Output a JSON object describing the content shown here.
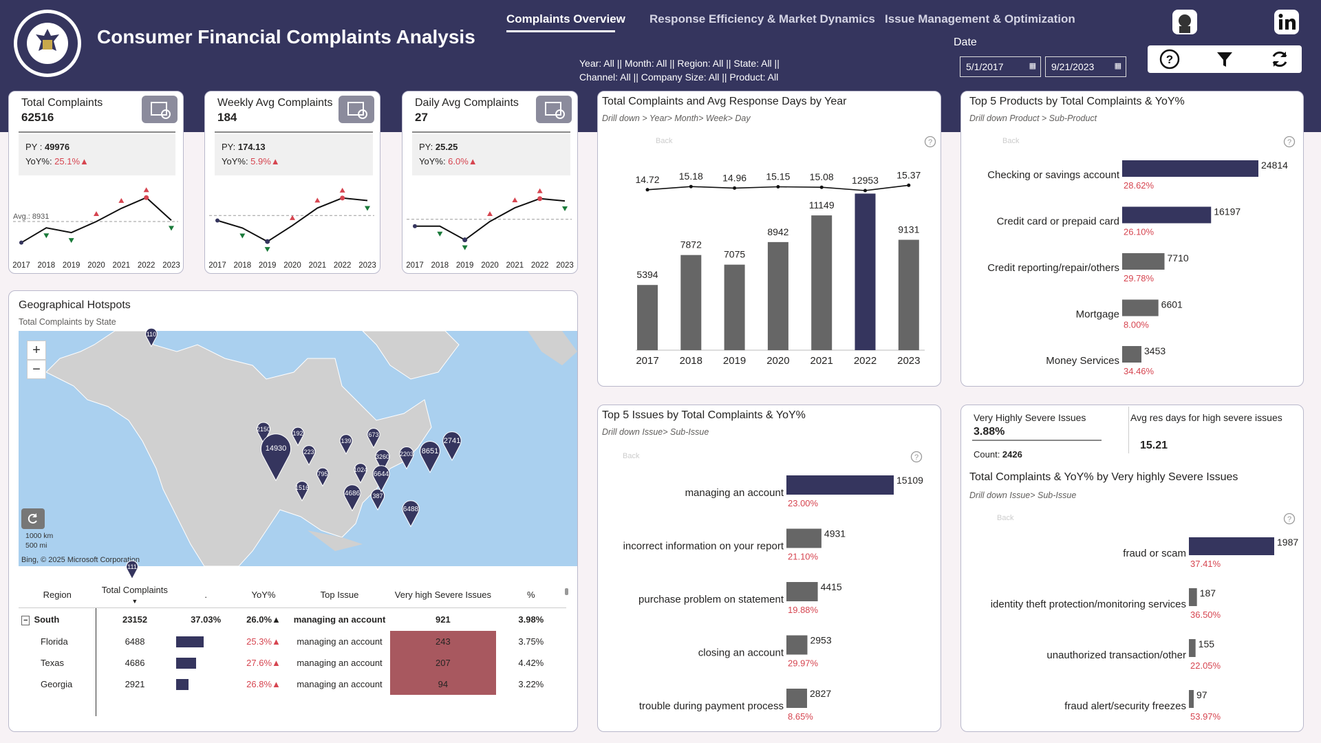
{
  "header": {
    "title": "Consumer Financial Complaints Analysis",
    "tabs": [
      {
        "label": "Complaints Overview"
      },
      {
        "label": "Response Efficiency & Market Dynamics"
      },
      {
        "label": "Issue Management & Optimization"
      }
    ],
    "filters_line1": "Year: All || Month: All || Region: All || State: All ||",
    "filters_line2": "Channel: All || Company Size: All || Product: All",
    "date_label": "Date",
    "date_from": "5/1/2017",
    "date_to": "9/21/2023",
    "icons": [
      "help-icon",
      "filter-icon",
      "refresh-icon"
    ],
    "logo_text": "BUREAU OF CONSUMER FINANCIAL PROTECTION · UNITED STATES OF AMERICA"
  },
  "colors": {
    "navy": "#35355e",
    "bar_gray": "#666666",
    "red": "#d64550",
    "green": "#1a7a3a",
    "severe_cell": "#a8585f"
  },
  "kpis": [
    {
      "title": "Total Complaints",
      "value": "62516",
      "py_label": "PY : ",
      "py_value": "49976",
      "yoy_label": "YoY%: ",
      "yoy_value": "25.1%▲",
      "avg_label": "Avg.: 8931"
    },
    {
      "title": "Weekly Avg Complaints",
      "value": "184",
      "py_label": "PY: ",
      "py_value": "174.13",
      "yoy_label": "YoY%: ",
      "yoy_value": "5.9%▲"
    },
    {
      "title": "Daily Avg Complaints",
      "value": "27",
      "py_label": "PY: ",
      "py_value": "25.25",
      "yoy_label": "YoY%: ",
      "yoy_value": "6.0%▲"
    }
  ],
  "geo": {
    "title": "Geographical Hotspots",
    "subtitle": "Total Complaints by State",
    "zoom_in": "+",
    "zoom_out": "−",
    "scale_km": "1000 km",
    "scale_mi": "500 mi",
    "credit": "Bing, © 2025 Microsoft Corporation",
    "pins": [
      "110",
      "2150",
      "14930",
      "192",
      "223",
      "139",
      "673",
      "3260",
      "1024",
      "795",
      "1516",
      "4686",
      "387",
      "6644",
      "2203",
      "8651",
      "2741",
      "6488",
      "111"
    ]
  },
  "table": {
    "headers": [
      "Region",
      "Total Complaints",
      ".",
      "YoY%",
      "Top Issue",
      "Very high Severe Issues",
      "%"
    ],
    "south": {
      "name": "South",
      "total": "23152",
      "share": "37.03%",
      "yoy": "26.0%▲",
      "issue": "managing an account",
      "severe": "921",
      "pct": "3.98%"
    },
    "rows": [
      {
        "name": "Florida",
        "total": "6488",
        "yoy": "25.3%▲",
        "issue": "managing an account",
        "severe": "243",
        "pct": "3.75%"
      },
      {
        "name": "Texas",
        "total": "4686",
        "yoy": "27.6%▲",
        "issue": "managing an account",
        "severe": "207",
        "pct": "4.42%"
      },
      {
        "name": "Georgia",
        "total": "2921",
        "yoy": "26.8%▲",
        "issue": "managing an account",
        "severe": "94",
        "pct": "3.22%"
      }
    ]
  },
  "severe": {
    "kpi1_title": "Very Highly Severe Issues",
    "kpi1_value": "3.88%",
    "count_label": "Count: ",
    "count_value": "2426",
    "kpi2_title": "Avg res days for high severe issues",
    "kpi2_value": "15.21"
  },
  "chart_data": [
    {
      "id": "kpi-total-trend",
      "type": "line",
      "x": [
        "2017",
        "2018",
        "2019",
        "2020",
        "2021",
        "2022",
        "2023"
      ],
      "values": [
        5394,
        7872,
        7075,
        8942,
        11149,
        12953,
        9131
      ],
      "average": 8931,
      "avg_label": "Avg.: 8931",
      "markers": [
        "",
        "down",
        "down",
        "up",
        "up",
        "up",
        "down"
      ]
    },
    {
      "id": "kpi-weekly-trend",
      "type": "line",
      "x": [
        "2017",
        "2018",
        "2019",
        "2020",
        "2021",
        "2022",
        "2023"
      ],
      "values": [
        150,
        135,
        108,
        140,
        175,
        195,
        190
      ],
      "average": 160,
      "markers": [
        "",
        "down",
        "down",
        "up",
        "up",
        "up",
        "down"
      ]
    },
    {
      "id": "kpi-daily-trend",
      "type": "line",
      "x": [
        "2017",
        "2018",
        "2019",
        "2020",
        "2021",
        "2022",
        "2023"
      ],
      "values": [
        22,
        22,
        19,
        23,
        26,
        28,
        27.5
      ],
      "average": 23.5,
      "markers": [
        "",
        "down",
        "down",
        "up",
        "up",
        "up",
        "down"
      ]
    },
    {
      "id": "year-combo",
      "type": "bar",
      "title": "Total Complaints and Avg Response Days by Year",
      "subtitle": "Drill down > Year> Month> Week> Day",
      "back_label": "Back",
      "categories": [
        "2017",
        "2018",
        "2019",
        "2020",
        "2021",
        "2022",
        "2023"
      ],
      "values": [
        5394,
        7872,
        7075,
        8942,
        11149,
        12953,
        9131
      ],
      "highlight_index": 5,
      "ylim": [
        0,
        14000
      ],
      "line_series": {
        "name": "Avg Response Days",
        "values": [
          14.72,
          15.18,
          14.96,
          15.15,
          15.08,
          null,
          15.37
        ]
      },
      "line_labels": [
        "14.72",
        "15.18",
        "14.96",
        "15.15",
        "15.08",
        "12953",
        "15.37"
      ],
      "bar_labels": [
        "5394",
        "7872",
        "7075",
        "8942",
        "11149",
        "",
        "9131"
      ]
    },
    {
      "id": "top-products",
      "type": "bar",
      "orientation": "horizontal",
      "title": "Top 5 Products by Total Complaints & YoY%",
      "subtitle": "Drill down Product > Sub-Product",
      "back_label": "Back",
      "categories": [
        "Checking or savings account",
        "Credit card or prepaid card",
        "Credit reporting/repair/others",
        "Mortgage",
        "Money Services"
      ],
      "values": [
        24814,
        16197,
        7710,
        6601,
        3453
      ],
      "yoy": [
        "28.62%",
        "26.10%",
        "29.78%",
        "8.00%",
        "34.46%"
      ],
      "highlight_count": 2
    },
    {
      "id": "top-issues",
      "type": "bar",
      "orientation": "horizontal",
      "title": "Top 5 Issues by Total Complaints & YoY%",
      "subtitle": "Drill down Issue> Sub-Issue",
      "back_label": "Back",
      "categories": [
        "managing an account",
        "incorrect information on your report",
        "purchase problem on statement",
        "closing an account",
        "trouble during payment process"
      ],
      "values": [
        15109,
        4931,
        4415,
        2953,
        2827
      ],
      "yoy": [
        "23.00%",
        "21.10%",
        "19.88%",
        "29.97%",
        "8.65%"
      ],
      "highlight_count": 1
    },
    {
      "id": "severe-issues",
      "type": "bar",
      "orientation": "horizontal",
      "title": "Total Complaints & YoY% by Very highly Severe Issues",
      "subtitle": "Drill down Issue> Sub-Issue",
      "back_label": "Back",
      "categories": [
        "fraud or scam",
        "identity theft protection/monitoring services",
        "unauthorized transaction/other",
        "fraud alert/security freezes"
      ],
      "values": [
        1987,
        187,
        155,
        97
      ],
      "yoy": [
        "37.41%",
        "36.50%",
        "22.05%",
        "53.97%"
      ],
      "highlight_count": 1
    }
  ]
}
